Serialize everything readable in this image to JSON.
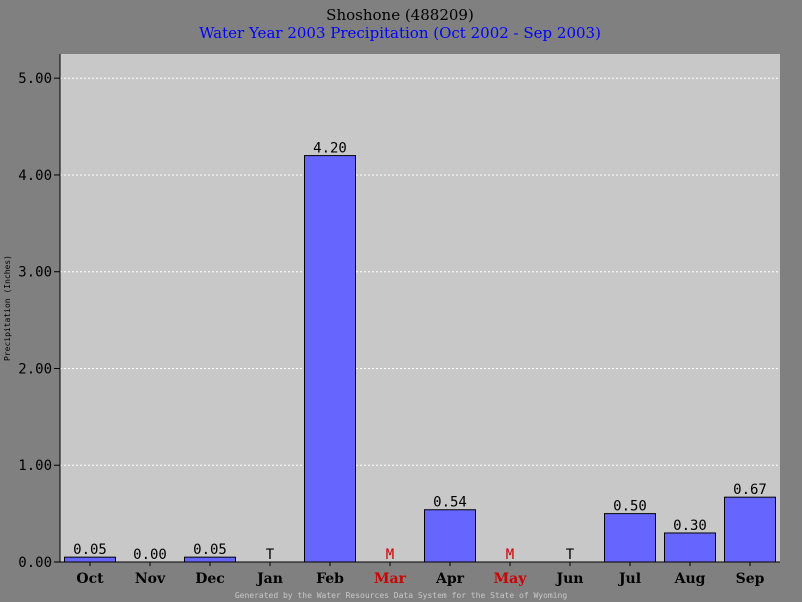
{
  "chart_data": {
    "type": "bar",
    "title": "Shoshone (488209)",
    "subtitle": "Water Year 2003 Precipitation (Oct 2002 - Sep 2003)",
    "ylabel": "Precipitation (Inches)",
    "footer": "Generated by the Water Resources Data System for the State of Wyoming",
    "categories": [
      "Oct",
      "Nov",
      "Dec",
      "Jan",
      "Feb",
      "Mar",
      "Apr",
      "May",
      "Jun",
      "Jul",
      "Aug",
      "Sep"
    ],
    "values": [
      0.05,
      0.0,
      0.05,
      null,
      4.2,
      null,
      0.54,
      null,
      null,
      0.5,
      0.3,
      0.67
    ],
    "labels": [
      "0.05",
      "0.00",
      "0.05",
      "T",
      "4.20",
      "M",
      "0.54",
      "M",
      "T",
      "0.50",
      "0.30",
      "0.67"
    ],
    "missing_months": [
      "Mar",
      "May"
    ],
    "yticks": [
      "0.00",
      "1.00",
      "2.00",
      "3.00",
      "4.00",
      "5.00"
    ],
    "ylim": [
      0,
      5.25
    ],
    "grid": true,
    "colors": {
      "background": "#808080",
      "plot": "#c8c8c8",
      "bar": "#6666ff",
      "bar_edge": "#000000",
      "title": "#000000",
      "subtitle": "#0000ff",
      "missing": "#cc0000",
      "grid": "#ffffff",
      "footer": "#c8c8c8"
    }
  }
}
